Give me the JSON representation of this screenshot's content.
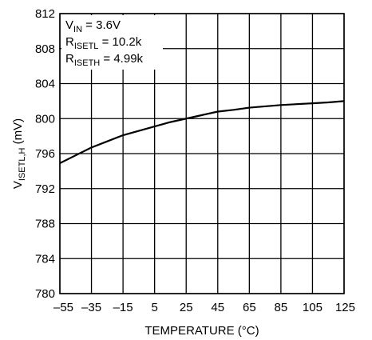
{
  "chart_data": {
    "type": "line",
    "title": "",
    "xlabel": "TEMPERATURE (°C)",
    "ylabel": {
      "main": "V",
      "sub": "ISETL,H",
      "unit": " (mV)"
    },
    "xlim": [
      -55,
      125
    ],
    "ylim": [
      780,
      812
    ],
    "x_ticks": [
      -55,
      -35,
      -15,
      5,
      25,
      45,
      65,
      85,
      105,
      125
    ],
    "x_tick_labels": [
      "–55",
      "–35",
      "–15",
      "5",
      "25",
      "45",
      "65",
      "85",
      "105",
      "125"
    ],
    "y_ticks": [
      780,
      784,
      788,
      792,
      796,
      800,
      804,
      808,
      812
    ],
    "y_tick_labels": [
      "780",
      "784",
      "788",
      "792",
      "796",
      "800",
      "804",
      "808",
      "812"
    ],
    "grid": true,
    "annotations": [
      {
        "main": "V",
        "sub": "IN",
        "rest": " = 3.6V"
      },
      {
        "main": "R",
        "sub": "ISETL",
        "rest": " = 10.2k"
      },
      {
        "main": "R",
        "sub": "ISETH",
        "rest": " = 4.99k"
      }
    ],
    "series": [
      {
        "x": [
          -55,
          -45,
          -35,
          -25,
          -15,
          -5,
          5,
          15,
          25,
          35,
          45,
          55,
          65,
          75,
          85,
          95,
          105,
          115,
          125
        ],
        "y": [
          794.9,
          795.8,
          796.7,
          797.4,
          798.1,
          798.6,
          799.1,
          799.6,
          800.0,
          800.4,
          800.8,
          801.0,
          801.25,
          801.4,
          801.55,
          801.65,
          801.75,
          801.85,
          802.0
        ]
      }
    ],
    "colors": {
      "line": "#000000",
      "grid": "#000000",
      "background": "#ffffff"
    }
  }
}
